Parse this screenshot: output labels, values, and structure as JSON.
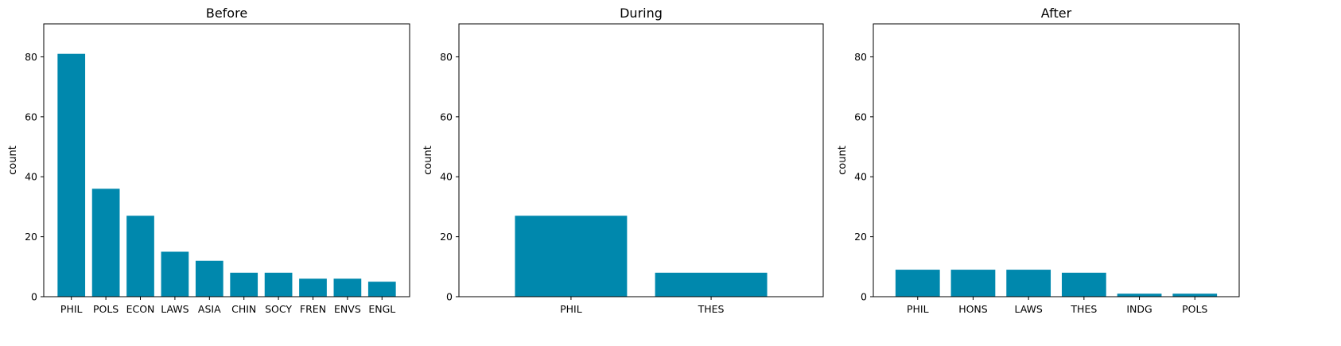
{
  "bar_color": "#0088ad",
  "chart_data": [
    {
      "type": "bar",
      "title": "Before",
      "ylabel": "count",
      "ylim": [
        0,
        91
      ],
      "yticks": [
        0,
        20,
        40,
        60,
        80
      ],
      "categories": [
        "PHIL",
        "POLS",
        "ECON",
        "LAWS",
        "ASIA",
        "CHIN",
        "SOCY",
        "FREN",
        "ENVS",
        "ENGL"
      ],
      "values": [
        81,
        36,
        27,
        15,
        12,
        8,
        8,
        6,
        6,
        5
      ]
    },
    {
      "type": "bar",
      "title": "During",
      "ylabel": "count",
      "ylim": [
        0,
        91
      ],
      "yticks": [
        0,
        20,
        40,
        60,
        80
      ],
      "categories": [
        "PHIL",
        "THES"
      ],
      "values": [
        27,
        8
      ]
    },
    {
      "type": "bar",
      "title": "After",
      "ylabel": "count",
      "ylim": [
        0,
        91
      ],
      "yticks": [
        0,
        20,
        40,
        60,
        80
      ],
      "categories": [
        "PHIL",
        "HONS",
        "LAWS",
        "THES",
        "INDG",
        "POLS"
      ],
      "values": [
        9,
        9,
        9,
        8,
        1,
        1
      ]
    }
  ]
}
